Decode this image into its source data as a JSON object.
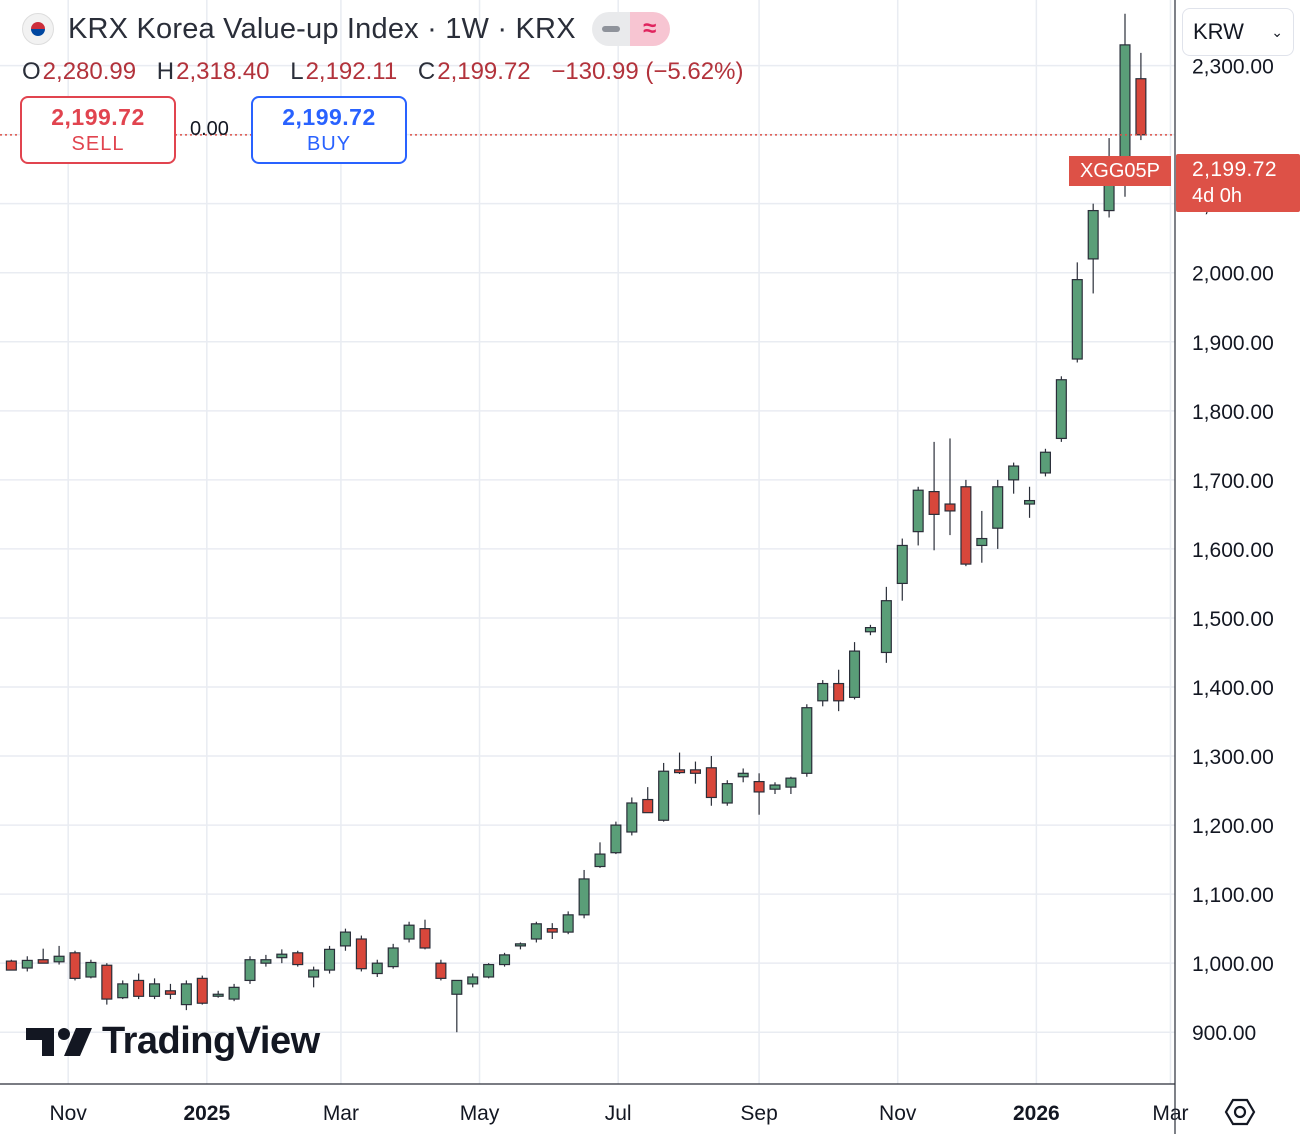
{
  "header": {
    "title": "KRX Korea Value-up Index · 1W · KRX",
    "flag_icon": "south-korea-flag-icon"
  },
  "ohlc": {
    "open_label": "O",
    "open": "2,280.99",
    "high_label": "H",
    "high": "2,318.40",
    "low_label": "L",
    "low": "2,192.11",
    "close_label": "C",
    "close": "2,199.72",
    "change": "−130.99 (−5.62%)"
  },
  "trade": {
    "sell_price": "2,199.72",
    "sell_label": "SELL",
    "spread": "0.00",
    "buy_price": "2,199.72",
    "buy_label": "BUY"
  },
  "currency": {
    "value": "KRW"
  },
  "price_tag": {
    "price": "2,199.72",
    "countdown": "4d 0h",
    "symbol": "XGG05P"
  },
  "logo": {
    "text": "TradingView"
  },
  "colors": {
    "up": "#5a9e78",
    "down": "#d8473b",
    "grid": "#e9ecf2",
    "last": "#dd5147"
  },
  "chart_data": {
    "type": "candlestick",
    "interval": "1W",
    "y_ticks": [
      "900.00",
      "1,000.00",
      "1,100.00",
      "1,200.00",
      "1,300.00",
      "1,400.00",
      "1,500.00",
      "1,600.00",
      "1,700.00",
      "1,800.00",
      "1,900.00",
      "2,000.00",
      "2,100.00",
      "2,300.00"
    ],
    "y_tick_values": [
      900,
      1000,
      1100,
      1200,
      1300,
      1400,
      1500,
      1600,
      1700,
      1800,
      1900,
      2000,
      2100,
      2300
    ],
    "x_ticks": [
      {
        "label": "Nov",
        "date": "2024-11-01",
        "bold": false
      },
      {
        "label": "2025",
        "date": "2025-01-01",
        "bold": true
      },
      {
        "label": "Mar",
        "date": "2025-03-01",
        "bold": false
      },
      {
        "label": "May",
        "date": "2025-05-01",
        "bold": false
      },
      {
        "label": "Jul",
        "date": "2025-07-01",
        "bold": false
      },
      {
        "label": "Sep",
        "date": "2025-09-01",
        "bold": false
      },
      {
        "label": "Nov",
        "date": "2025-11-01",
        "bold": false
      },
      {
        "label": "2026",
        "date": "2026-01-01",
        "bold": true
      },
      {
        "label": "Mar",
        "date": "2026-03-01",
        "bold": false
      }
    ],
    "x_range": [
      "2024-10-02",
      "2026-03-03"
    ],
    "ylim": [
      825,
      2395
    ],
    "last_price": 2199.72,
    "candles": [
      {
        "date": "2024-10-07",
        "o": 1003,
        "h": 1005,
        "l": 990,
        "c": 990
      },
      {
        "date": "2024-10-14",
        "o": 993,
        "h": 1010,
        "l": 988,
        "c": 1004
      },
      {
        "date": "2024-10-21",
        "o": 1005,
        "h": 1021,
        "l": 1000,
        "c": 1000
      },
      {
        "date": "2024-10-28",
        "o": 1002,
        "h": 1025,
        "l": 998,
        "c": 1010
      },
      {
        "date": "2024-11-04",
        "o": 1015,
        "h": 1018,
        "l": 975,
        "c": 978
      },
      {
        "date": "2024-11-11",
        "o": 980,
        "h": 1005,
        "l": 978,
        "c": 1001
      },
      {
        "date": "2024-11-18",
        "o": 997,
        "h": 1000,
        "l": 940,
        "c": 948
      },
      {
        "date": "2024-11-25",
        "o": 950,
        "h": 975,
        "l": 948,
        "c": 970
      },
      {
        "date": "2024-12-02",
        "o": 975,
        "h": 985,
        "l": 948,
        "c": 952
      },
      {
        "date": "2024-12-09",
        "o": 952,
        "h": 978,
        "l": 948,
        "c": 970
      },
      {
        "date": "2024-12-16",
        "o": 960,
        "h": 970,
        "l": 948,
        "c": 955
      },
      {
        "date": "2024-12-23",
        "o": 940,
        "h": 975,
        "l": 932,
        "c": 970
      },
      {
        "date": "2024-12-30",
        "o": 978,
        "h": 982,
        "l": 940,
        "c": 942
      },
      {
        "date": "2025-01-06",
        "o": 955,
        "h": 960,
        "l": 950,
        "c": 955
      },
      {
        "date": "2025-01-13",
        "o": 948,
        "h": 970,
        "l": 945,
        "c": 965
      },
      {
        "date": "2025-01-20",
        "o": 975,
        "h": 1010,
        "l": 970,
        "c": 1005
      },
      {
        "date": "2025-01-27",
        "o": 1000,
        "h": 1012,
        "l": 995,
        "c": 1005
      },
      {
        "date": "2025-02-03",
        "o": 1008,
        "h": 1020,
        "l": 1000,
        "c": 1013
      },
      {
        "date": "2025-02-10",
        "o": 1015,
        "h": 1018,
        "l": 995,
        "c": 998
      },
      {
        "date": "2025-02-17",
        "o": 980,
        "h": 995,
        "l": 965,
        "c": 990
      },
      {
        "date": "2025-02-24",
        "o": 990,
        "h": 1025,
        "l": 985,
        "c": 1020
      },
      {
        "date": "2025-03-03",
        "o": 1025,
        "h": 1050,
        "l": 1018,
        "c": 1045
      },
      {
        "date": "2025-03-10",
        "o": 1035,
        "h": 1040,
        "l": 988,
        "c": 992
      },
      {
        "date": "2025-03-17",
        "o": 985,
        "h": 1005,
        "l": 980,
        "c": 1000
      },
      {
        "date": "2025-03-24",
        "o": 995,
        "h": 1028,
        "l": 992,
        "c": 1022
      },
      {
        "date": "2025-03-31",
        "o": 1035,
        "h": 1060,
        "l": 1030,
        "c": 1055
      },
      {
        "date": "2025-04-07",
        "o": 1050,
        "h": 1063,
        "l": 1020,
        "c": 1022
      },
      {
        "date": "2025-04-14",
        "o": 1000,
        "h": 1005,
        "l": 975,
        "c": 978
      },
      {
        "date": "2025-04-21",
        "o": 955,
        "h": 975,
        "l": 900,
        "c": 975
      },
      {
        "date": "2025-04-28",
        "o": 970,
        "h": 985,
        "l": 965,
        "c": 980
      },
      {
        "date": "2025-05-05",
        "o": 980,
        "h": 1000,
        "l": 978,
        "c": 998
      },
      {
        "date": "2025-05-12",
        "o": 998,
        "h": 1015,
        "l": 995,
        "c": 1012
      },
      {
        "date": "2025-05-19",
        "o": 1025,
        "h": 1030,
        "l": 1020,
        "c": 1028
      },
      {
        "date": "2025-05-26",
        "o": 1035,
        "h": 1060,
        "l": 1030,
        "c": 1057
      },
      {
        "date": "2025-06-02",
        "o": 1050,
        "h": 1058,
        "l": 1035,
        "c": 1045
      },
      {
        "date": "2025-06-09",
        "o": 1045,
        "h": 1075,
        "l": 1042,
        "c": 1070
      },
      {
        "date": "2025-06-16",
        "o": 1070,
        "h": 1135,
        "l": 1065,
        "c": 1122
      },
      {
        "date": "2025-06-23",
        "o": 1140,
        "h": 1175,
        "l": 1138,
        "c": 1158
      },
      {
        "date": "2025-06-30",
        "o": 1160,
        "h": 1205,
        "l": 1158,
        "c": 1200
      },
      {
        "date": "2025-07-07",
        "o": 1190,
        "h": 1240,
        "l": 1185,
        "c": 1232
      },
      {
        "date": "2025-07-14",
        "o": 1237,
        "h": 1255,
        "l": 1218,
        "c": 1218
      },
      {
        "date": "2025-07-21",
        "o": 1207,
        "h": 1290,
        "l": 1205,
        "c": 1278
      },
      {
        "date": "2025-07-28",
        "o": 1280,
        "h": 1305,
        "l": 1274,
        "c": 1276
      },
      {
        "date": "2025-08-04",
        "o": 1280,
        "h": 1292,
        "l": 1260,
        "c": 1275
      },
      {
        "date": "2025-08-11",
        "o": 1283,
        "h": 1300,
        "l": 1228,
        "c": 1240
      },
      {
        "date": "2025-08-18",
        "o": 1232,
        "h": 1265,
        "l": 1228,
        "c": 1260
      },
      {
        "date": "2025-08-25",
        "o": 1270,
        "h": 1282,
        "l": 1262,
        "c": 1275
      },
      {
        "date": "2025-09-01",
        "o": 1263,
        "h": 1275,
        "l": 1215,
        "c": 1248
      },
      {
        "date": "2025-09-08",
        "o": 1252,
        "h": 1262,
        "l": 1245,
        "c": 1258
      },
      {
        "date": "2025-09-15",
        "o": 1255,
        "h": 1270,
        "l": 1245,
        "c": 1268
      },
      {
        "date": "2025-09-22",
        "o": 1275,
        "h": 1375,
        "l": 1270,
        "c": 1370
      },
      {
        "date": "2025-09-29",
        "o": 1380,
        "h": 1410,
        "l": 1372,
        "c": 1405
      },
      {
        "date": "2025-10-06",
        "o": 1405,
        "h": 1425,
        "l": 1365,
        "c": 1380
      },
      {
        "date": "2025-10-13",
        "o": 1385,
        "h": 1465,
        "l": 1382,
        "c": 1452
      },
      {
        "date": "2025-10-20",
        "o": 1480,
        "h": 1490,
        "l": 1475,
        "c": 1486
      },
      {
        "date": "2025-10-27",
        "o": 1450,
        "h": 1545,
        "l": 1435,
        "c": 1525
      },
      {
        "date": "2025-11-03",
        "o": 1550,
        "h": 1615,
        "l": 1525,
        "c": 1605
      },
      {
        "date": "2025-11-10",
        "o": 1625,
        "h": 1690,
        "l": 1605,
        "c": 1685
      },
      {
        "date": "2025-11-17",
        "o": 1683,
        "h": 1755,
        "l": 1598,
        "c": 1650
      },
      {
        "date": "2025-11-24",
        "o": 1665,
        "h": 1760,
        "l": 1620,
        "c": 1655
      },
      {
        "date": "2025-12-01",
        "o": 1690,
        "h": 1700,
        "l": 1575,
        "c": 1578
      },
      {
        "date": "2025-12-08",
        "o": 1605,
        "h": 1655,
        "l": 1580,
        "c": 1615
      },
      {
        "date": "2025-12-15",
        "o": 1630,
        "h": 1700,
        "l": 1600,
        "c": 1690
      },
      {
        "date": "2025-12-22",
        "o": 1700,
        "h": 1725,
        "l": 1680,
        "c": 1720
      },
      {
        "date": "2025-12-29",
        "o": 1665,
        "h": 1690,
        "l": 1645,
        "c": 1670
      },
      {
        "date": "2026-01-05",
        "o": 1710,
        "h": 1745,
        "l": 1705,
        "c": 1740
      },
      {
        "date": "2026-01-12",
        "o": 1760,
        "h": 1850,
        "l": 1755,
        "c": 1845
      },
      {
        "date": "2026-01-19",
        "o": 1875,
        "h": 2015,
        "l": 1870,
        "c": 1990
      },
      {
        "date": "2026-01-26",
        "o": 2020,
        "h": 2100,
        "l": 1970,
        "c": 2090
      },
      {
        "date": "2026-02-02",
        "o": 2090,
        "h": 2195,
        "l": 2080,
        "c": 2155
      },
      {
        "date": "2026-02-09",
        "o": 2150,
        "h": 2375,
        "l": 2110,
        "c": 2330
      },
      {
        "date": "2026-02-16",
        "o": 2280.99,
        "h": 2318.4,
        "l": 2192.11,
        "c": 2199.72
      }
    ]
  }
}
